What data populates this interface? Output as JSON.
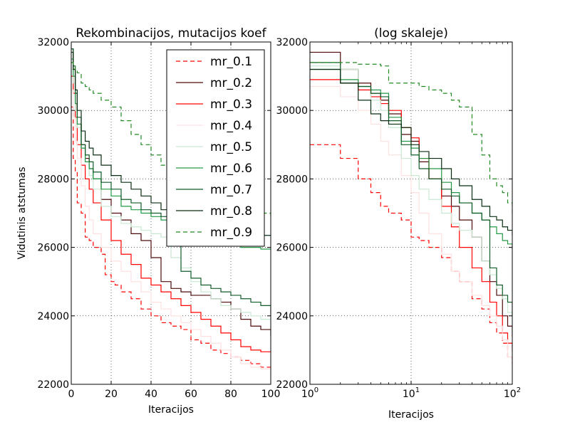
{
  "chart_data": [
    {
      "type": "line",
      "title": "Rekombinacijos, mutacijos koef",
      "xlabel": "Iteracijos",
      "ylabel": "Vidutinis atstumas",
      "xscale": "linear",
      "xlim": [
        0,
        100
      ],
      "ylim": [
        22000,
        32000
      ],
      "xticks": [
        "0",
        "20",
        "40",
        "60",
        "80",
        "100"
      ],
      "yticks": [
        "22000",
        "24000",
        "26000",
        "28000",
        "30000",
        "32000"
      ],
      "grid": true,
      "legend_placement": "top-right",
      "series": [
        {
          "name": "mr_0.1",
          "color": "#ff0000",
          "dash": "dashed",
          "x": [
            0,
            1,
            2,
            3,
            5,
            7,
            9,
            11,
            15,
            17,
            20,
            22,
            25,
            30,
            35,
            40,
            45,
            50,
            55,
            60,
            65,
            70,
            75,
            80,
            85,
            90,
            95,
            99,
            100
          ],
          "y": [
            30100,
            28600,
            28200,
            27300,
            27000,
            26300,
            26200,
            26000,
            25800,
            25200,
            25000,
            24900,
            24700,
            24500,
            24200,
            24000,
            23800,
            23700,
            23600,
            23300,
            23200,
            23000,
            22900,
            22800,
            22700,
            22600,
            22500,
            22500,
            22400
          ]
        },
        {
          "name": "mr_0.2",
          "color": "#4d0a0a",
          "dash": "solid",
          "x": [
            0,
            1,
            2,
            3,
            5,
            7,
            9,
            11,
            15,
            20,
            25,
            30,
            35,
            40,
            45,
            50,
            55,
            60,
            65,
            70,
            75,
            80,
            85,
            90,
            95,
            100
          ],
          "y": [
            31800,
            31200,
            30200,
            29600,
            29000,
            28600,
            28300,
            28000,
            27400,
            27000,
            26800,
            26400,
            26200,
            25700,
            25000,
            24800,
            24700,
            24600,
            24600,
            24500,
            24400,
            24200,
            23900,
            23700,
            23600,
            23400
          ]
        },
        {
          "name": "mr_0.3",
          "color": "#ff0000",
          "dash": "solid",
          "x": [
            0,
            1,
            2,
            3,
            5,
            7,
            9,
            11,
            15,
            20,
            25,
            30,
            35,
            40,
            45,
            50,
            55,
            60,
            65,
            70,
            75,
            80,
            85,
            90,
            95,
            100
          ],
          "y": [
            31000,
            30500,
            29800,
            29000,
            28400,
            28000,
            27700,
            27300,
            26800,
            26200,
            25800,
            25500,
            25100,
            24900,
            24700,
            24500,
            24300,
            24100,
            23900,
            23700,
            23500,
            23300,
            23100,
            23000,
            22950,
            22950
          ]
        },
        {
          "name": "mr_0.4",
          "color": "#ffe0e0",
          "dash": "solid",
          "x": [
            0,
            1,
            2,
            3,
            5,
            7,
            9,
            11,
            15,
            20,
            25,
            30,
            35,
            40,
            45,
            50,
            55,
            60,
            65,
            70,
            75,
            80,
            85,
            90,
            95,
            100
          ],
          "y": [
            30600,
            29800,
            29100,
            28600,
            27800,
            27200,
            26800,
            26400,
            26000,
            25600,
            25300,
            25000,
            24700,
            24400,
            24200,
            24000,
            23800,
            23600,
            23400,
            23200,
            23000,
            22800,
            22600,
            22500,
            22450,
            22400
          ]
        },
        {
          "name": "mr_0.5",
          "color": "#c8e8d2",
          "dash": "solid",
          "x": [
            0,
            1,
            2,
            3,
            5,
            7,
            9,
            11,
            15,
            20,
            25,
            30,
            35,
            40,
            45,
            50,
            55,
            60,
            65,
            70,
            75,
            80,
            85,
            90,
            95,
            100
          ],
          "y": [
            31200,
            30800,
            30000,
            29500,
            28900,
            28500,
            28100,
            27700,
            27200,
            26900,
            26700,
            26600,
            26500,
            26400,
            26300,
            25700,
            25400,
            25000,
            24700,
            24500,
            24300,
            24200,
            24100,
            24000,
            23900,
            23800
          ]
        },
        {
          "name": "mr_0.6",
          "color": "#229944",
          "dash": "solid",
          "x": [
            0,
            1,
            2,
            3,
            5,
            7,
            9,
            11,
            15,
            20,
            25,
            30,
            35,
            40,
            45,
            50,
            55,
            60,
            65,
            70,
            75,
            80,
            85,
            90,
            95,
            100
          ],
          "y": [
            31500,
            31000,
            30200,
            29600,
            28900,
            28500,
            28300,
            28000,
            27700,
            27500,
            27200,
            27100,
            27000,
            26900,
            26800,
            26700,
            26500,
            26400,
            26300,
            26200,
            26100,
            26100,
            26000,
            26000,
            25950,
            25950
          ]
        },
        {
          "name": "mr_0.7",
          "color": "#125c2a",
          "dash": "solid",
          "x": [
            0,
            1,
            2,
            3,
            5,
            7,
            9,
            11,
            15,
            20,
            25,
            30,
            35,
            40,
            45,
            50,
            55,
            60,
            65,
            70,
            75,
            80,
            85,
            90,
            95,
            100
          ],
          "y": [
            31800,
            31300,
            30500,
            29800,
            29000,
            28700,
            28500,
            28200,
            27900,
            27700,
            27400,
            27300,
            27100,
            27000,
            26900,
            26800,
            25300,
            25100,
            24900,
            24800,
            24700,
            24600,
            24500,
            24400,
            24300,
            24000
          ]
        },
        {
          "name": "mr_0.8",
          "color": "#0a2e12",
          "dash": "solid",
          "x": [
            0,
            1,
            2,
            3,
            5,
            7,
            9,
            11,
            15,
            20,
            25,
            30,
            35,
            40,
            45,
            50,
            55,
            60,
            65,
            70,
            75,
            80,
            85,
            90,
            95,
            100
          ],
          "y": [
            31700,
            31200,
            30600,
            30000,
            29400,
            29100,
            28900,
            28700,
            28400,
            28100,
            27900,
            27700,
            27500,
            27300,
            27100,
            26900,
            26800,
            26700,
            26600,
            26600,
            26500,
            26500,
            26400,
            26400,
            26350,
            26350
          ]
        },
        {
          "name": "mr_0.9",
          "color": "#228b22",
          "dash": "dashed",
          "x": [
            0,
            1,
            2,
            3,
            5,
            7,
            9,
            11,
            15,
            20,
            25,
            30,
            35,
            40,
            45,
            50,
            55,
            60,
            65,
            70,
            75,
            80,
            85,
            90,
            95,
            100
          ],
          "y": [
            31400,
            31300,
            31200,
            31100,
            30800,
            30700,
            30600,
            30500,
            30300,
            30100,
            29700,
            29300,
            29000,
            28700,
            28400,
            28200,
            28000,
            27900,
            27700,
            27600,
            27400,
            27300,
            27200,
            27100,
            27000,
            26900
          ]
        }
      ]
    },
    {
      "type": "line",
      "title": "(log skaleje)",
      "xlabel": "Iteracijos",
      "ylabel": "",
      "xscale": "log",
      "xlim": [
        1,
        100
      ],
      "ylim": [
        22000,
        32000
      ],
      "xtick_bases": [
        "10",
        "10",
        "10"
      ],
      "xtick_exponents": [
        "0",
        "1",
        "2"
      ],
      "yticks": [
        "22000",
        "24000",
        "26000",
        "28000",
        "30000",
        "32000"
      ],
      "grid": true,
      "series": [
        {
          "name": "mr_0.1",
          "color": "#ff0000",
          "dash": "dashed",
          "x": [
            1,
            2,
            3,
            4,
            5,
            6,
            8,
            10,
            12,
            15,
            20,
            25,
            30,
            40,
            50,
            60,
            70,
            80,
            90,
            100
          ],
          "y": [
            29000,
            28600,
            28000,
            27600,
            27200,
            27000,
            26800,
            26300,
            26200,
            26000,
            25700,
            25300,
            25000,
            24500,
            24200,
            23800,
            23500,
            23200,
            22800,
            22600
          ]
        },
        {
          "name": "mr_0.2",
          "color": "#4d0a0a",
          "dash": "solid",
          "x": [
            1,
            2,
            3,
            4,
            5,
            6,
            8,
            10,
            12,
            15,
            20,
            25,
            30,
            40,
            50,
            60,
            70,
            80,
            90,
            100
          ],
          "y": [
            31700,
            31200,
            30800,
            30500,
            30300,
            29900,
            29300,
            29100,
            28500,
            28000,
            27500,
            27200,
            26800,
            26300,
            25600,
            25000,
            24600,
            24000,
            23700,
            23400
          ]
        },
        {
          "name": "mr_0.3",
          "color": "#ff0000",
          "dash": "solid",
          "x": [
            1,
            2,
            3,
            4,
            5,
            6,
            8,
            10,
            12,
            15,
            20,
            25,
            30,
            40,
            50,
            60,
            70,
            80,
            90,
            100
          ],
          "y": [
            30900,
            30800,
            30600,
            30400,
            30200,
            30000,
            29500,
            29200,
            28600,
            28000,
            27200,
            26600,
            26000,
            25400,
            25000,
            24400,
            24000,
            23500,
            23200,
            22950
          ]
        },
        {
          "name": "mr_0.4",
          "color": "#ffe0e0",
          "dash": "solid",
          "x": [
            1,
            2,
            3,
            4,
            5,
            6,
            8,
            10,
            12,
            15,
            20,
            25,
            30,
            40,
            50,
            60,
            70,
            80,
            90,
            100
          ],
          "y": [
            30700,
            30400,
            30000,
            29600,
            29100,
            28700,
            28100,
            27600,
            27000,
            26400,
            25800,
            25300,
            25000,
            24600,
            24300,
            24000,
            23700,
            23300,
            22800,
            22400
          ]
        },
        {
          "name": "mr_0.5",
          "color": "#c8e8d2",
          "dash": "solid",
          "x": [
            1,
            2,
            3,
            4,
            5,
            6,
            8,
            10,
            12,
            15,
            20,
            25,
            30,
            40,
            50,
            60,
            70,
            80,
            90,
            100
          ],
          "y": [
            31300,
            31200,
            30700,
            30300,
            30000,
            29500,
            28600,
            28100,
            27700,
            27400,
            27000,
            26700,
            26500,
            26300,
            25600,
            25200,
            24800,
            24500,
            24100,
            23800
          ]
        },
        {
          "name": "mr_0.6",
          "color": "#229944",
          "dash": "solid",
          "x": [
            1,
            2,
            3,
            4,
            5,
            6,
            8,
            10,
            12,
            15,
            20,
            25,
            30,
            40,
            50,
            60,
            70,
            80,
            90,
            100
          ],
          "y": [
            31200,
            30900,
            30700,
            30600,
            30500,
            29800,
            29100,
            28900,
            28600,
            28300,
            27900,
            27600,
            27300,
            27000,
            26800,
            26600,
            26400,
            26200,
            26100,
            25950
          ]
        },
        {
          "name": "mr_0.7",
          "color": "#125c2a",
          "dash": "solid",
          "x": [
            1,
            2,
            3,
            4,
            5,
            6,
            8,
            10,
            12,
            15,
            20,
            25,
            30,
            40,
            50,
            60,
            70,
            80,
            90,
            100
          ],
          "y": [
            31400,
            30800,
            30700,
            30500,
            30400,
            29700,
            29000,
            28700,
            28300,
            28000,
            27700,
            27500,
            27300,
            27000,
            26800,
            25400,
            24900,
            24600,
            24400,
            24000
          ]
        },
        {
          "name": "mr_0.8",
          "color": "#0a2e12",
          "dash": "solid",
          "x": [
            1,
            2,
            3,
            4,
            5,
            6,
            8,
            10,
            12,
            15,
            20,
            25,
            30,
            40,
            50,
            60,
            70,
            80,
            90,
            100
          ],
          "y": [
            31200,
            30800,
            30300,
            29900,
            29700,
            29600,
            29500,
            29000,
            28800,
            28600,
            28300,
            28000,
            27800,
            27400,
            27200,
            26900,
            26800,
            26600,
            26500,
            26350
          ]
        },
        {
          "name": "mr_0.9",
          "color": "#228b22",
          "dash": "dashed",
          "x": [
            1,
            2,
            3,
            4,
            5,
            6,
            8,
            10,
            12,
            15,
            20,
            25,
            30,
            40,
            50,
            60,
            70,
            80,
            90,
            100
          ],
          "y": [
            31400,
            31400,
            31350,
            31350,
            31300,
            30800,
            30800,
            30800,
            30700,
            30600,
            30500,
            30300,
            30100,
            29300,
            28700,
            28000,
            27800,
            27600,
            27300,
            27000
          ]
        }
      ]
    }
  ]
}
